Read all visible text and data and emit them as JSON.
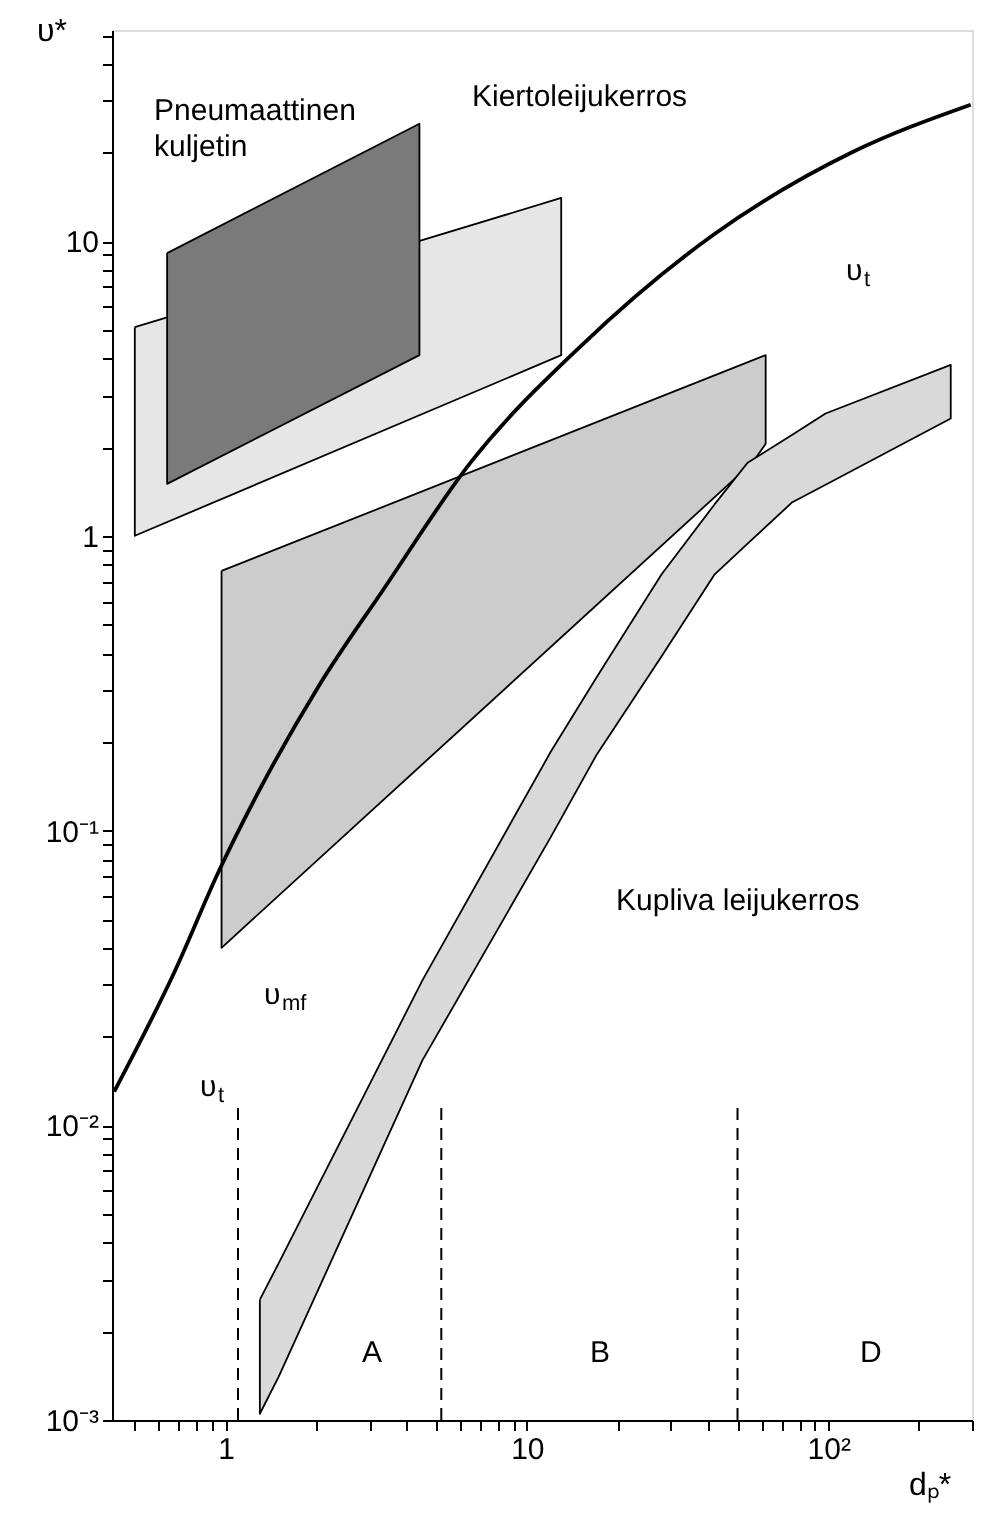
{
  "chart_data": {
    "type": "line",
    "log": "xy",
    "grid": false,
    "marker": "none",
    "xlabel": "dₚ*",
    "ylabel": "υ*",
    "xlim": [
      0.42,
      300
    ],
    "ylim": [
      0.001,
      52
    ],
    "xticks": [
      {
        "value": 0.5,
        "label": null
      },
      {
        "value": 0.6,
        "label": null
      },
      {
        "value": 0.7,
        "label": null
      },
      {
        "value": 0.8,
        "label": null
      },
      {
        "value": 0.9,
        "label": null
      },
      1,
      {
        "value": 2,
        "label": null
      },
      {
        "value": 3,
        "label": null
      },
      {
        "value": 4,
        "label": null
      },
      {
        "value": 5,
        "label": null
      },
      {
        "value": 6,
        "label": null
      },
      {
        "value": 7,
        "label": null
      },
      {
        "value": 8,
        "label": null
      },
      {
        "value": 9,
        "label": null
      },
      10,
      {
        "value": 20,
        "label": null
      },
      {
        "value": 30,
        "label": null
      },
      {
        "value": 40,
        "label": null
      },
      {
        "value": 50,
        "label": null
      },
      {
        "value": 60,
        "label": null
      },
      {
        "value": 70,
        "label": null
      },
      {
        "value": 80,
        "label": null
      },
      {
        "value": 90,
        "label": null
      },
      {
        "value": 100,
        "label": "10²"
      },
      {
        "value": 200,
        "label": null
      },
      {
        "value": 300,
        "label": null
      }
    ],
    "yticks": [
      {
        "value": 0.001,
        "label": "10⁻³"
      },
      {
        "value": 0.002,
        "label": null
      },
      {
        "value": 0.003,
        "label": null
      },
      {
        "value": 0.004,
        "label": null
      },
      {
        "value": 0.005,
        "label": null
      },
      {
        "value": 0.006,
        "label": null
      },
      {
        "value": 0.007,
        "label": null
      },
      {
        "value": 0.008,
        "label": null
      },
      {
        "value": 0.009,
        "label": null
      },
      {
        "value": 0.01,
        "label": "10⁻²"
      },
      {
        "value": 0.02,
        "label": null
      },
      {
        "value": 0.03,
        "label": null
      },
      {
        "value": 0.04,
        "label": null
      },
      {
        "value": 0.05,
        "label": null
      },
      {
        "value": 0.06,
        "label": null
      },
      {
        "value": 0.07,
        "label": null
      },
      {
        "value": 0.08,
        "label": null
      },
      {
        "value": 0.09,
        "label": null
      },
      {
        "value": 0.1,
        "label": "10⁻¹"
      },
      {
        "value": 0.2,
        "label": null
      },
      {
        "value": 0.3,
        "label": null
      },
      {
        "value": 0.4,
        "label": null
      },
      {
        "value": 0.5,
        "label": null
      },
      {
        "value": 0.6,
        "label": null
      },
      {
        "value": 0.7,
        "label": null
      },
      {
        "value": 0.8,
        "label": null
      },
      {
        "value": 0.9,
        "label": null
      },
      1,
      {
        "value": 2,
        "label": null
      },
      {
        "value": 3,
        "label": null
      },
      {
        "value": 4,
        "label": null
      },
      {
        "value": 5,
        "label": null
      },
      {
        "value": 6,
        "label": null
      },
      {
        "value": 7,
        "label": null
      },
      {
        "value": 8,
        "label": null
      },
      {
        "value": 9,
        "label": null
      },
      10,
      {
        "value": 20,
        "label": null
      },
      {
        "value": 30,
        "label": null
      },
      {
        "value": 40,
        "label": null
      },
      {
        "value": 50,
        "label": null
      }
    ],
    "series": [
      {
        "type": "area",
        "color": "#e6e6e6",
        "x": [
          0.5,
          13,
          13,
          0.5,
          0.5
        ],
        "values": [
          5.1,
          14,
          4.1,
          1.0,
          5.1
        ]
      },
      {
        "type": "area",
        "color": "#7a7a7a",
        "x": [
          0.64,
          4.4,
          4.4,
          0.64,
          0.64
        ],
        "values": [
          9.1,
          25,
          4.1,
          1.5,
          9.1
        ]
      },
      {
        "type": "area",
        "color": "#cccccc",
        "x": [
          0.97,
          62,
          62,
          56,
          0.97,
          0.97
        ],
        "values": [
          0.76,
          4.1,
          2.05,
          1.77,
          0.04,
          0.76
        ]
      },
      {
        "type": "area",
        "color": "#d9d9d9",
        "x": [
          1.3,
          1.5,
          4.5,
          12,
          17,
          28,
          42,
          54,
          76,
          98,
          255,
          255,
          98,
          76,
          54,
          42,
          28,
          17,
          12,
          4.5,
          1.5,
          1.3,
          1.3
        ],
        "values": [
          0.00256,
          0.0034,
          0.031,
          0.185,
          0.33,
          0.74,
          1.28,
          1.77,
          2.2,
          2.6,
          3.8,
          2.5,
          1.49,
          1.3,
          0.94,
          0.74,
          0.39,
          0.18,
          0.095,
          0.0166,
          0.0014,
          0.00105,
          0.00256
        ]
      },
      {
        "type": "line",
        "color": "#000000",
        "x": [
          0.427,
          0.672,
          0.955,
          1.29,
          2.03,
          3.35,
          6.5,
          15.1,
          41.6,
          120,
          297
        ],
        "values": [
          0.013,
          0.0326,
          0.0736,
          0.136,
          0.307,
          0.66,
          1.77,
          4.4,
          10.5,
          20,
          29
        ]
      },
      {
        "type": "line",
        "color": "#000000",
        "line_style": "dashed",
        "x": [
          1.1,
          1.1
        ],
        "values": [
          0.001,
          0.012
        ]
      },
      {
        "type": "line",
        "color": "#000000",
        "line_style": "dashed",
        "x": [
          5.2,
          5.2
        ],
        "values": [
          0.001,
          0.012
        ]
      },
      {
        "type": "line",
        "color": "#000000",
        "line_style": "dashed",
        "x": [
          50,
          50
        ],
        "values": [
          0.001,
          0.012
        ]
      }
    ],
    "annotations": [
      "Pneumaattinen\nkuljetin",
      "Kiertoleijukerros",
      "Kupliva leijukerros",
      "υ$_{t}$",
      "υ$_{t}$",
      "υ$_{mf}$",
      "A",
      "B",
      "D"
    ]
  }
}
